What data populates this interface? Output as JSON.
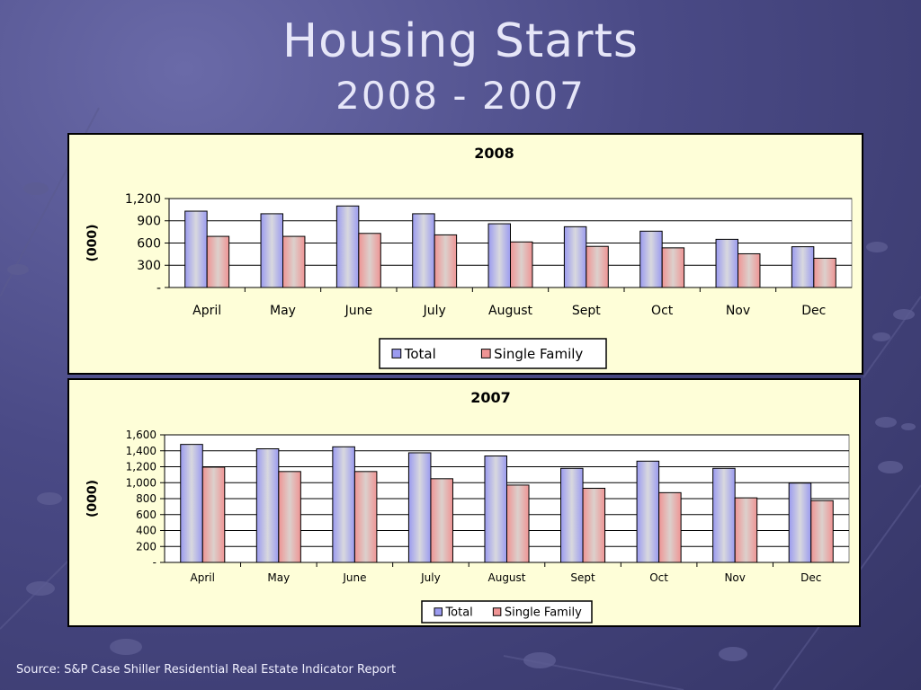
{
  "slide": {
    "title": "Housing Starts",
    "subtitle": "2008 - 2007",
    "source": "Source: S&P Case Shiller Residential Real Estate Indicator Report"
  },
  "colors": {
    "total_fill": "#9b9bf0",
    "total_center": "#d8d8de",
    "single_fill": "#ef9494",
    "single_center": "#dcd0cc",
    "panel_bg": "#fefed8"
  },
  "chart_data": [
    {
      "type": "bar",
      "title": "2008",
      "ylabel": "(000)",
      "xlabel": "",
      "categories": [
        "April",
        "May",
        "June",
        "July",
        "August",
        "Sept",
        "Oct",
        "Nov",
        "Dec"
      ],
      "series": [
        {
          "name": "Total",
          "values": [
            1030,
            995,
            1100,
            995,
            860,
            820,
            760,
            650,
            550
          ]
        },
        {
          "name": "Single Family",
          "values": [
            690,
            690,
            730,
            710,
            615,
            555,
            535,
            455,
            395
          ]
        }
      ],
      "ylim": [
        0,
        1200
      ],
      "yticks": [
        0,
        300,
        600,
        900,
        1200
      ],
      "ytick_labels": [
        "-",
        "300",
        "600",
        "900",
        "1,200"
      ],
      "grid": true,
      "legend": "bottom-center"
    },
    {
      "type": "bar",
      "title": "2007",
      "ylabel": "(000)",
      "xlabel": "",
      "categories": [
        "April",
        "May",
        "June",
        "July",
        "August",
        "Sept",
        "Oct",
        "Nov",
        "Dec"
      ],
      "series": [
        {
          "name": "Total",
          "values": [
            1480,
            1425,
            1450,
            1375,
            1335,
            1180,
            1270,
            1180,
            995
          ]
        },
        {
          "name": "Single Family",
          "values": [
            1195,
            1140,
            1140,
            1050,
            970,
            930,
            875,
            810,
            775
          ]
        }
      ],
      "ylim": [
        0,
        1600
      ],
      "yticks": [
        0,
        200,
        400,
        600,
        800,
        1000,
        1200,
        1400,
        1600
      ],
      "ytick_labels": [
        "-",
        "200",
        "400",
        "600",
        "800",
        "1,000",
        "1,200",
        "1,400",
        "1,600"
      ],
      "grid": true,
      "legend": "bottom-center"
    }
  ]
}
